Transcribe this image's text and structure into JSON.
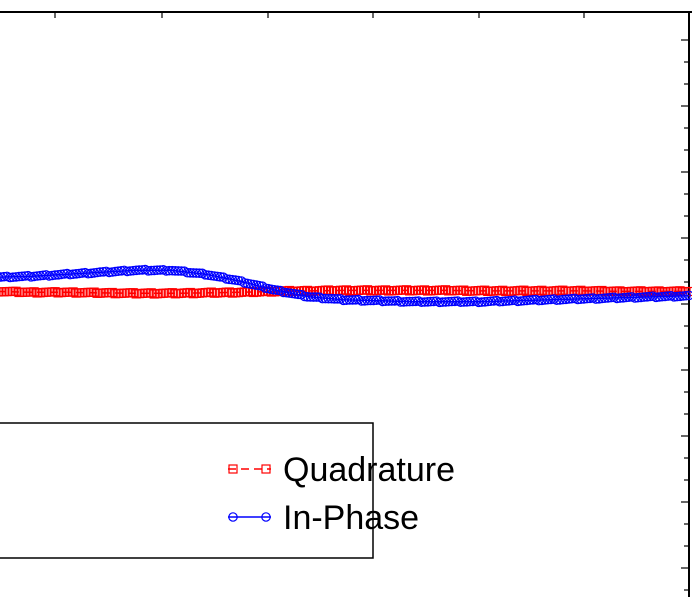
{
  "chart_data": {
    "type": "line",
    "title": "",
    "xlabel": "",
    "ylabel": "",
    "x_range": [
      0,
      100
    ],
    "ylim": [
      0,
      1
    ],
    "grid": false,
    "legend_position": "bottom-left",
    "series": [
      {
        "name": "Quadrature",
        "color": "#ff0000",
        "line_style": "dashed",
        "marker": "square",
        "x": [
          0,
          5,
          10,
          15,
          20,
          25,
          30,
          35,
          40,
          45,
          50,
          55,
          60,
          65,
          70,
          75,
          80,
          85,
          90,
          95,
          100
        ],
        "y": [
          0.5224,
          0.5208,
          0.5208,
          0.5199,
          0.5191,
          0.5191,
          0.5199,
          0.5208,
          0.5224,
          0.5233,
          0.5241,
          0.5241,
          0.5241,
          0.5241,
          0.5233,
          0.5233,
          0.5233,
          0.5233,
          0.5224,
          0.5224,
          0.5224
        ]
      },
      {
        "name": "In-Phase",
        "color": "#0000ff",
        "line_style": "solid",
        "marker": "circle",
        "x": [
          0,
          5,
          10,
          15,
          20,
          25,
          30,
          35,
          40,
          45,
          50,
          55,
          60,
          65,
          70,
          75,
          80,
          85,
          90,
          95,
          100
        ],
        "y": [
          0.5467,
          0.5484,
          0.5517,
          0.5551,
          0.5585,
          0.5585,
          0.5518,
          0.54,
          0.5249,
          0.5132,
          0.5081,
          0.5065,
          0.5048,
          0.5048,
          0.5048,
          0.5065,
          0.5081,
          0.5098,
          0.5115,
          0.5132,
          0.5149
        ]
      }
    ]
  }
}
